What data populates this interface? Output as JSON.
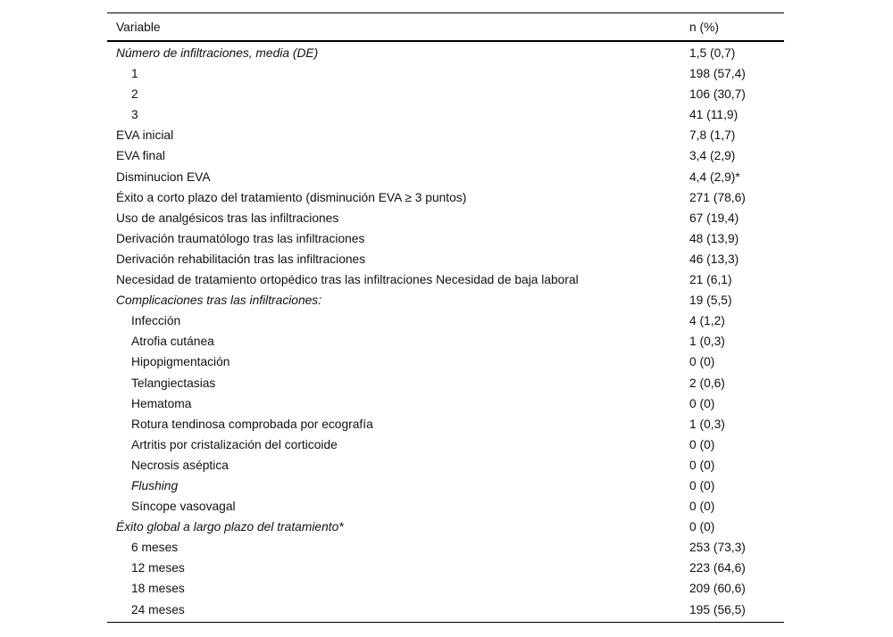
{
  "table": {
    "columns": [
      "Variable",
      "n (%)"
    ],
    "rows": [
      {
        "label": "Número de infiltraciones, media (DE)",
        "value": "1,5 (0,7)",
        "italic": true,
        "indent": false
      },
      {
        "label": "1",
        "value": "198 (57,4)",
        "italic": false,
        "indent": true
      },
      {
        "label": "2",
        "value": "106 (30,7)",
        "italic": false,
        "indent": true
      },
      {
        "label": "3",
        "value": "41 (11,9)",
        "italic": false,
        "indent": true
      },
      {
        "label": "EVA inicial",
        "value": "7,8 (1,7)",
        "italic": false,
        "indent": false
      },
      {
        "label": "EVA final",
        "value": "3,4 (2,9)",
        "italic": false,
        "indent": false
      },
      {
        "label": "Disminucion EVA",
        "value": "4,4 (2,9)*",
        "italic": false,
        "indent": false
      },
      {
        "label": "Éxito a corto plazo del tratamiento (disminución EVA ≥ 3 puntos)",
        "value": "271 (78,6)",
        "italic": false,
        "indent": false
      },
      {
        "label": "Uso de analgésicos tras las infiltraciones",
        "value": "67 (19,4)",
        "italic": false,
        "indent": false
      },
      {
        "label": "Derivación traumatólogo tras las infiltraciones",
        "value": "48 (13,9)",
        "italic": false,
        "indent": false
      },
      {
        "label": "Derivación rehabilitación tras las infiltraciones",
        "value": "46 (13,3)",
        "italic": false,
        "indent": false
      },
      {
        "label": "Necesidad de tratamiento ortopédico tras las infiltraciones Necesidad de baja laboral",
        "value": "21 (6,1)",
        "italic": false,
        "indent": false
      },
      {
        "label": "Complicaciones tras las infiltraciones:",
        "value": "19 (5,5)",
        "italic": true,
        "indent": false
      },
      {
        "label": "Infección",
        "value": "4 (1,2)",
        "italic": false,
        "indent": true
      },
      {
        "label": "Atrofia cutánea",
        "value": "1 (0,3)",
        "italic": false,
        "indent": true
      },
      {
        "label": "Hipopigmentación",
        "value": "0 (0)",
        "italic": false,
        "indent": true
      },
      {
        "label": "Telangiectasias",
        "value": "2 (0,6)",
        "italic": false,
        "indent": true
      },
      {
        "label": "Hematoma",
        "value": "0 (0)",
        "italic": false,
        "indent": true
      },
      {
        "label": "Rotura tendinosa comprobada por ecografía",
        "value": "1 (0,3)",
        "italic": false,
        "indent": true
      },
      {
        "label": "Artritis por cristalización del corticoide",
        "value": "0 (0)",
        "italic": false,
        "indent": true
      },
      {
        "label": "Necrosis aséptica",
        "value": "0 (0)",
        "italic": false,
        "indent": true
      },
      {
        "label": "Flushing",
        "value": "0 (0)",
        "italic": true,
        "indent": true
      },
      {
        "label": "Síncope vasovagal",
        "value": "0 (0)",
        "italic": false,
        "indent": true
      },
      {
        "label": "Éxito global a largo plazo del tratamiento*",
        "value": "0 (0)",
        "italic": true,
        "indent": false
      },
      {
        "label": "6 meses",
        "value": "253 (73,3)",
        "italic": false,
        "indent": true
      },
      {
        "label": "12 meses",
        "value": "223 (64,6)",
        "italic": false,
        "indent": true
      },
      {
        "label": "18 meses",
        "value": "209 (60,6)",
        "italic": false,
        "indent": true
      },
      {
        "label": "24 meses",
        "value": "195 (56,5)",
        "italic": false,
        "indent": true
      }
    ]
  }
}
